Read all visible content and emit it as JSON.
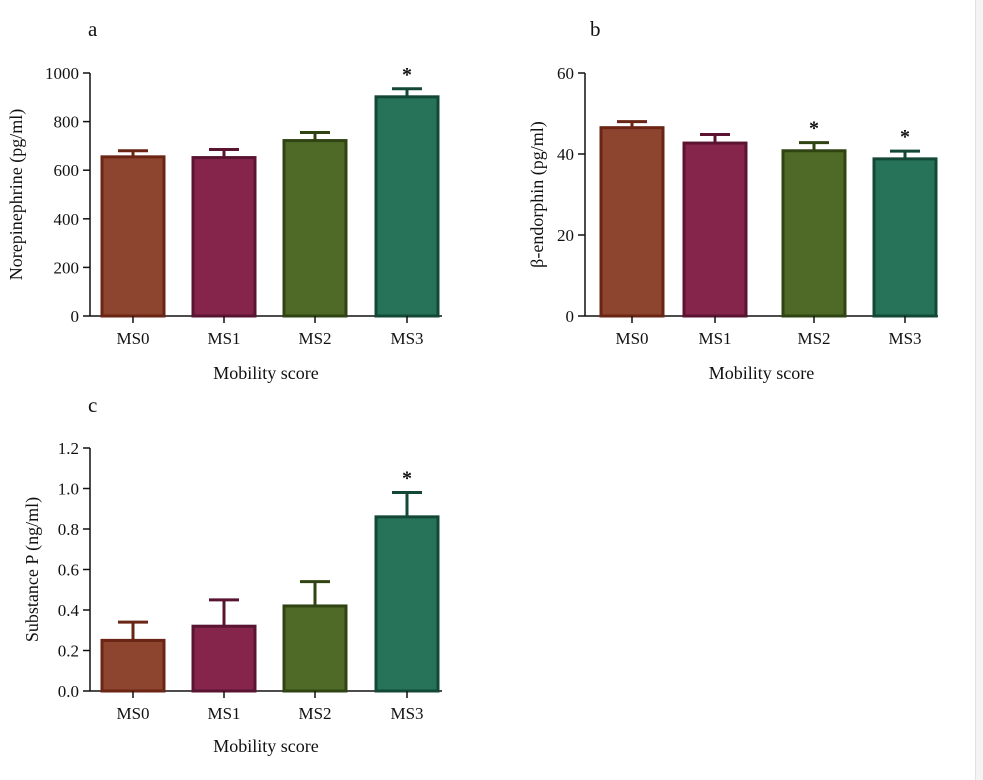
{
  "colors": {
    "MS0": {
      "fill": "#8e4530",
      "stroke": "#6a2515"
    },
    "MS1": {
      "fill": "#85254c",
      "stroke": "#5a1432"
    },
    "MS2": {
      "fill": "#4e6a26",
      "stroke": "#2f4412"
    },
    "MS3": {
      "fill": "#26735a",
      "stroke": "#134836"
    }
  },
  "chart_data": [
    {
      "panel": "a",
      "type": "bar",
      "title": "",
      "xlabel": "Mobility score",
      "ylabel": "Norepinephrine (pg/ml)",
      "categories": [
        "MS0",
        "MS1",
        "MS2",
        "MS3"
      ],
      "values": [
        655,
        652,
        722,
        902
      ],
      "errors": [
        25,
        33,
        33,
        33
      ],
      "significance": [
        "",
        "",
        "",
        "*"
      ],
      "ylim": [
        0,
        1000
      ],
      "yticks": [
        0,
        200,
        400,
        600,
        800,
        1000
      ],
      "ytick_labels": [
        "0",
        "200",
        "400",
        "600",
        "800",
        "1000"
      ]
    },
    {
      "panel": "b",
      "type": "bar",
      "title": "",
      "xlabel": "Mobility score",
      "ylabel": "β-endorphin (pg/ml)",
      "categories": [
        "MS0",
        "MS1",
        "MS2",
        "MS3"
      ],
      "values": [
        46.5,
        42.7,
        40.8,
        38.8
      ],
      "errors": [
        1.5,
        2.1,
        2.0,
        1.9
      ],
      "significance": [
        "",
        "",
        "*",
        "*"
      ],
      "ylim": [
        0,
        60
      ],
      "yticks": [
        0,
        20,
        40,
        60
      ],
      "ytick_labels": [
        "0",
        "20",
        "40",
        "60"
      ]
    },
    {
      "panel": "c",
      "type": "bar",
      "title": "",
      "xlabel": "Mobility score",
      "ylabel": "Substance P (ng/ml)",
      "categories": [
        "MS0",
        "MS1",
        "MS2",
        "MS3"
      ],
      "values": [
        0.25,
        0.32,
        0.42,
        0.86
      ],
      "errors": [
        0.09,
        0.13,
        0.12,
        0.12
      ],
      "significance": [
        "",
        "",
        "",
        "*"
      ],
      "ylim": [
        0,
        1.2
      ],
      "yticks": [
        0,
        0.2,
        0.4,
        0.6,
        0.8,
        1.0,
        1.2
      ],
      "ytick_labels": [
        "0.0",
        "0.2",
        "0.4",
        "0.6",
        "0.8",
        "1.0",
        "1.2"
      ]
    }
  ]
}
